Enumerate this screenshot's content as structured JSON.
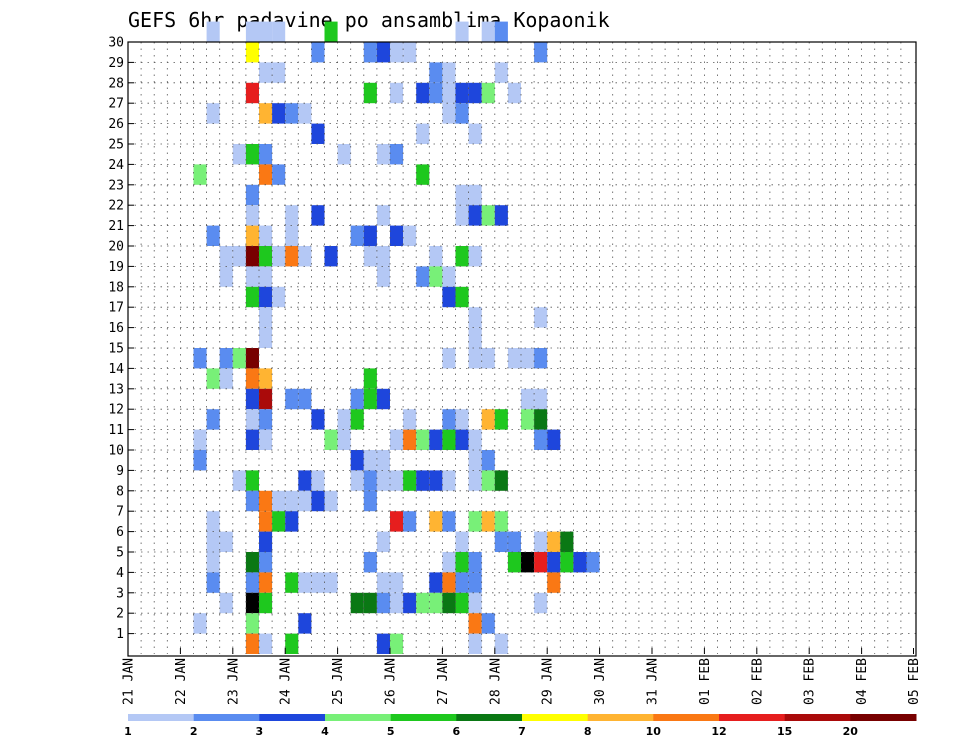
{
  "chart_data": {
    "type": "heatmap",
    "title": "GEFS 6hr padavine po ansamblima Kopaonik",
    "y_categories": [
      "1",
      "2",
      "3",
      "4",
      "5",
      "6",
      "7",
      "8",
      "9",
      "10",
      "11",
      "12",
      "13",
      "14",
      "15",
      "16",
      "17",
      "18",
      "19",
      "20",
      "21",
      "22",
      "23",
      "24",
      "25",
      "26",
      "27",
      "28",
      "29",
      "30"
    ],
    "x_labels": [
      "21 JAN",
      "22 JAN",
      "23 JAN",
      "24 JAN",
      "25 JAN",
      "26 JAN",
      "27 JAN",
      "28 JAN",
      "29 JAN",
      "30 JAN",
      "31 JAN",
      "01 FEB",
      "02 FEB",
      "03 FEB",
      "04 FEB",
      "05 FEB"
    ],
    "x_step_unit": "6hr",
    "grid": true,
    "colorbar": {
      "ticks": [
        "1",
        "2",
        "3",
        "4",
        "5",
        "6",
        "7",
        "8",
        "10",
        "12",
        "15",
        "20"
      ],
      "colors": [
        "#b4c8f5",
        "#5a8cf0",
        "#1e46dc",
        "#78f078",
        "#1ec81e",
        "#0a7814",
        "#ffff00",
        "#ffb432",
        "#fa7814",
        "#e61e1e",
        "#aa0a0a",
        "#780000"
      ]
    },
    "cells": [
      [
        30,
        6,
        1
      ],
      [
        30,
        9,
        1
      ],
      [
        30,
        10,
        1
      ],
      [
        30,
        11,
        1
      ],
      [
        30,
        15,
        5
      ],
      [
        30,
        25,
        1
      ],
      [
        30,
        27,
        1
      ],
      [
        30,
        28,
        2
      ],
      [
        29,
        9,
        7
      ],
      [
        29,
        14,
        2
      ],
      [
        29,
        18,
        2
      ],
      [
        29,
        19,
        3
      ],
      [
        29,
        20,
        1
      ],
      [
        29,
        21,
        1
      ],
      [
        29,
        31,
        2
      ],
      [
        28,
        10,
        1
      ],
      [
        28,
        11,
        1
      ],
      [
        28,
        23,
        2
      ],
      [
        28,
        24,
        1
      ],
      [
        28,
        28,
        1
      ],
      [
        27,
        9,
        10
      ],
      [
        27,
        18,
        5
      ],
      [
        27,
        20,
        1
      ],
      [
        27,
        22,
        3
      ],
      [
        27,
        23,
        2
      ],
      [
        27,
        24,
        1
      ],
      [
        27,
        25,
        3
      ],
      [
        27,
        26,
        3
      ],
      [
        27,
        27,
        4
      ],
      [
        27,
        29,
        1
      ],
      [
        26,
        6,
        1
      ],
      [
        26,
        10,
        8
      ],
      [
        26,
        11,
        3
      ],
      [
        26,
        12,
        2
      ],
      [
        26,
        13,
        1
      ],
      [
        26,
        24,
        1
      ],
      [
        26,
        25,
        2
      ],
      [
        25,
        14,
        3
      ],
      [
        25,
        22,
        1
      ],
      [
        25,
        26,
        1
      ],
      [
        24,
        8,
        1
      ],
      [
        24,
        9,
        5
      ],
      [
        24,
        10,
        2
      ],
      [
        24,
        16,
        1
      ],
      [
        24,
        19,
        1
      ],
      [
        24,
        20,
        2
      ],
      [
        23,
        5,
        4
      ],
      [
        23,
        10,
        9
      ],
      [
        23,
        11,
        2
      ],
      [
        23,
        22,
        5
      ],
      [
        22,
        9,
        2
      ],
      [
        22,
        25,
        1
      ],
      [
        22,
        26,
        1
      ],
      [
        21,
        9,
        1
      ],
      [
        21,
        12,
        1
      ],
      [
        21,
        14,
        3
      ],
      [
        21,
        19,
        1
      ],
      [
        21,
        25,
        1
      ],
      [
        21,
        26,
        3
      ],
      [
        21,
        27,
        4
      ],
      [
        21,
        28,
        3
      ],
      [
        20,
        6,
        2
      ],
      [
        20,
        9,
        8
      ],
      [
        20,
        10,
        1
      ],
      [
        20,
        12,
        1
      ],
      [
        20,
        17,
        2
      ],
      [
        20,
        18,
        3
      ],
      [
        20,
        20,
        3
      ],
      [
        20,
        21,
        1
      ],
      [
        19,
        7,
        1
      ],
      [
        19,
        8,
        1
      ],
      [
        19,
        9,
        12
      ],
      [
        19,
        10,
        5
      ],
      [
        19,
        11,
        1
      ],
      [
        19,
        12,
        9
      ],
      [
        19,
        13,
        1
      ],
      [
        19,
        15,
        3
      ],
      [
        19,
        18,
        1
      ],
      [
        19,
        19,
        1
      ],
      [
        19,
        23,
        1
      ],
      [
        19,
        25,
        5
      ],
      [
        19,
        26,
        1
      ],
      [
        18,
        7,
        1
      ],
      [
        18,
        9,
        1
      ],
      [
        18,
        10,
        1
      ],
      [
        18,
        19,
        1
      ],
      [
        18,
        22,
        2
      ],
      [
        18,
        23,
        4
      ],
      [
        18,
        24,
        1
      ],
      [
        17,
        9,
        5
      ],
      [
        17,
        10,
        3
      ],
      [
        17,
        11,
        1
      ],
      [
        17,
        24,
        3
      ],
      [
        17,
        25,
        5
      ],
      [
        16,
        10,
        1
      ],
      [
        16,
        26,
        1
      ],
      [
        16,
        31,
        1
      ],
      [
        15,
        10,
        1
      ],
      [
        15,
        26,
        1
      ],
      [
        14,
        5,
        2
      ],
      [
        14,
        7,
        2
      ],
      [
        14,
        8,
        4
      ],
      [
        14,
        9,
        12
      ],
      [
        14,
        24,
        1
      ],
      [
        14,
        26,
        1
      ],
      [
        14,
        27,
        1
      ],
      [
        14,
        29,
        1
      ],
      [
        14,
        30,
        1
      ],
      [
        14,
        31,
        2
      ],
      [
        13,
        6,
        4
      ],
      [
        13,
        7,
        1
      ],
      [
        13,
        9,
        9
      ],
      [
        13,
        10,
        8
      ],
      [
        13,
        18,
        5
      ],
      [
        12,
        9,
        3
      ],
      [
        12,
        10,
        11
      ],
      [
        12,
        12,
        2
      ],
      [
        12,
        13,
        2
      ],
      [
        12,
        17,
        2
      ],
      [
        12,
        18,
        5
      ],
      [
        12,
        19,
        3
      ],
      [
        12,
        30,
        1
      ],
      [
        12,
        31,
        1
      ],
      [
        11,
        6,
        2
      ],
      [
        11,
        9,
        1
      ],
      [
        11,
        10,
        2
      ],
      [
        11,
        14,
        3
      ],
      [
        11,
        16,
        1
      ],
      [
        11,
        17,
        5
      ],
      [
        11,
        21,
        1
      ],
      [
        11,
        24,
        2
      ],
      [
        11,
        25,
        1
      ],
      [
        11,
        27,
        8
      ],
      [
        11,
        28,
        5
      ],
      [
        11,
        30,
        4
      ],
      [
        11,
        31,
        6
      ],
      [
        10,
        5,
        1
      ],
      [
        10,
        9,
        3
      ],
      [
        10,
        10,
        1
      ],
      [
        10,
        15,
        4
      ],
      [
        10,
        16,
        1
      ],
      [
        10,
        20,
        1
      ],
      [
        10,
        21,
        9
      ],
      [
        10,
        22,
        4
      ],
      [
        10,
        23,
        3
      ],
      [
        10,
        24,
        5
      ],
      [
        10,
        25,
        3
      ],
      [
        10,
        26,
        1
      ],
      [
        10,
        31,
        2
      ],
      [
        10,
        32,
        3
      ],
      [
        9,
        5,
        2
      ],
      [
        9,
        17,
        3
      ],
      [
        9,
        18,
        1
      ],
      [
        9,
        19,
        1
      ],
      [
        9,
        26,
        1
      ],
      [
        9,
        27,
        2
      ],
      [
        8,
        8,
        1
      ],
      [
        8,
        9,
        5
      ],
      [
        8,
        13,
        3
      ],
      [
        8,
        14,
        1
      ],
      [
        8,
        17,
        1
      ],
      [
        8,
        18,
        2
      ],
      [
        8,
        19,
        1
      ],
      [
        8,
        20,
        1
      ],
      [
        8,
        21,
        5
      ],
      [
        8,
        22,
        3
      ],
      [
        8,
        23,
        3
      ],
      [
        8,
        24,
        1
      ],
      [
        8,
        26,
        1
      ],
      [
        8,
        27,
        4
      ],
      [
        8,
        28,
        6
      ],
      [
        7,
        9,
        2
      ],
      [
        7,
        10,
        9
      ],
      [
        7,
        11,
        1
      ],
      [
        7,
        12,
        1
      ],
      [
        7,
        13,
        1
      ],
      [
        7,
        14,
        3
      ],
      [
        7,
        15,
        1
      ],
      [
        7,
        18,
        2
      ],
      [
        6,
        6,
        1
      ],
      [
        6,
        10,
        9
      ],
      [
        6,
        11,
        5
      ],
      [
        6,
        12,
        3
      ],
      [
        6,
        20,
        10
      ],
      [
        6,
        21,
        2
      ],
      [
        6,
        23,
        8
      ],
      [
        6,
        24,
        2
      ],
      [
        6,
        26,
        4
      ],
      [
        6,
        27,
        8
      ],
      [
        6,
        28,
        4
      ],
      [
        5,
        6,
        1
      ],
      [
        5,
        7,
        1
      ],
      [
        5,
        10,
        3
      ],
      [
        5,
        19,
        1
      ],
      [
        5,
        25,
        1
      ],
      [
        5,
        28,
        2
      ],
      [
        5,
        29,
        2
      ],
      [
        5,
        31,
        1
      ],
      [
        5,
        32,
        8
      ],
      [
        5,
        33,
        6
      ],
      [
        4,
        6,
        1
      ],
      [
        4,
        9,
        6
      ],
      [
        4,
        10,
        2
      ],
      [
        4,
        18,
        2
      ],
      [
        4,
        24,
        1
      ],
      [
        4,
        25,
        5
      ],
      [
        4,
        26,
        2
      ],
      [
        4,
        29,
        5
      ],
      [
        4,
        30,
        15
      ],
      [
        4,
        31,
        10
      ],
      [
        4,
        32,
        3
      ],
      [
        4,
        33,
        5
      ],
      [
        4,
        34,
        3
      ],
      [
        4,
        35,
        2
      ],
      [
        3,
        6,
        2
      ],
      [
        3,
        9,
        2
      ],
      [
        3,
        10,
        9
      ],
      [
        3,
        12,
        5
      ],
      [
        3,
        13,
        1
      ],
      [
        3,
        14,
        1
      ],
      [
        3,
        15,
        1
      ],
      [
        3,
        19,
        1
      ],
      [
        3,
        20,
        1
      ],
      [
        3,
        23,
        3
      ],
      [
        3,
        24,
        9
      ],
      [
        3,
        25,
        2
      ],
      [
        3,
        26,
        2
      ],
      [
        3,
        32,
        9
      ],
      [
        2,
        7,
        1
      ],
      [
        2,
        9,
        15
      ],
      [
        2,
        10,
        5
      ],
      [
        2,
        17,
        6
      ],
      [
        2,
        18,
        6
      ],
      [
        2,
        19,
        2
      ],
      [
        2,
        20,
        1
      ],
      [
        2,
        21,
        3
      ],
      [
        2,
        22,
        4
      ],
      [
        2,
        23,
        4
      ],
      [
        2,
        24,
        6
      ],
      [
        2,
        25,
        5
      ],
      [
        2,
        26,
        1
      ],
      [
        2,
        31,
        1
      ],
      [
        1,
        5,
        1
      ],
      [
        1,
        9,
        4
      ],
      [
        1,
        13,
        3
      ],
      [
        1,
        26,
        9
      ],
      [
        1,
        27,
        2
      ],
      [
        0,
        9,
        9
      ],
      [
        0,
        10,
        1
      ],
      [
        0,
        12,
        5
      ],
      [
        0,
        19,
        3
      ],
      [
        0,
        20,
        4
      ],
      [
        0,
        26,
        1
      ],
      [
        0,
        28,
        1
      ]
    ]
  }
}
